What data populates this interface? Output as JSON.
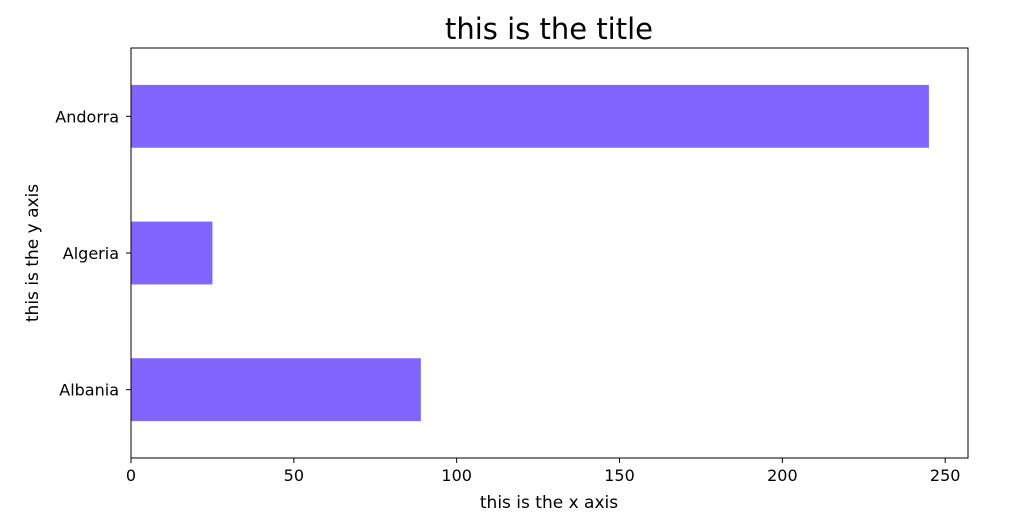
{
  "chart_data": {
    "type": "bar",
    "orientation": "horizontal",
    "title": "this is the title",
    "xlabel": "this is the x axis",
    "ylabel": "this is the y axis",
    "categories": [
      "Albania",
      "Algeria",
      "Andorra"
    ],
    "values": [
      89,
      25,
      245
    ],
    "xlim": [
      0,
      257
    ],
    "xticks": [
      0,
      50,
      100,
      150,
      200,
      250
    ],
    "bar_color": "#8066ff",
    "grid": false,
    "legend": "none"
  }
}
